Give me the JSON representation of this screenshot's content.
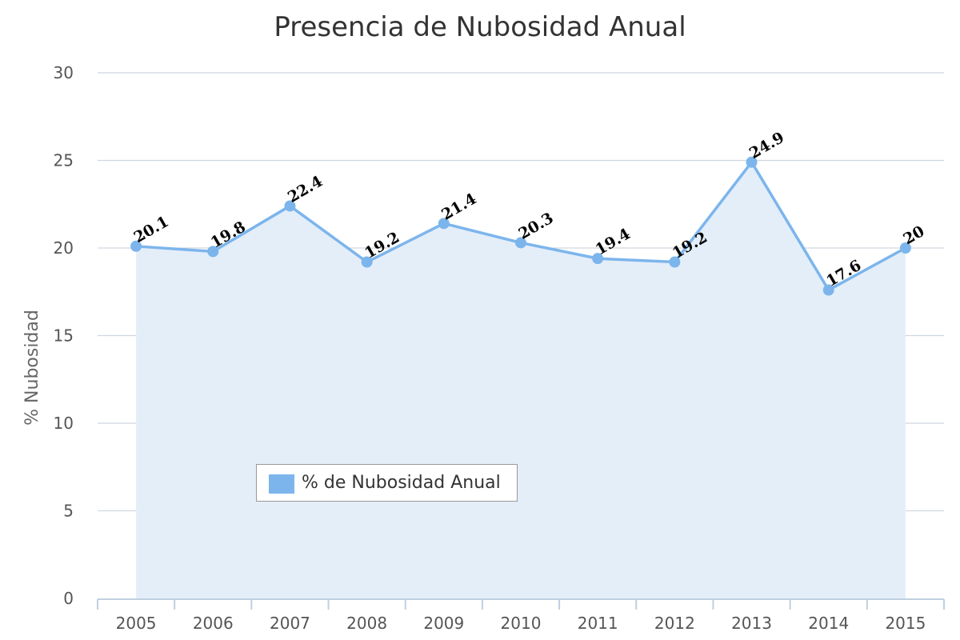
{
  "chart_data": {
    "type": "area",
    "title": "Presencia de Nubosidad Anual",
    "xlabel": "",
    "ylabel": "% Nubosidad",
    "categories": [
      "2005",
      "2006",
      "2007",
      "2008",
      "2009",
      "2010",
      "2011",
      "2012",
      "2013",
      "2014",
      "2015"
    ],
    "series": [
      {
        "name": "% de Nubosidad Anual",
        "values": [
          20.1,
          19.8,
          22.4,
          19.2,
          21.4,
          20.3,
          19.4,
          19.2,
          24.9,
          17.6,
          20
        ],
        "data_labels": [
          "20.1",
          "19.8",
          "22.4",
          "19.2",
          "21.4",
          "20.3",
          "19.4",
          "19.2",
          "24.9",
          "17.6",
          "20"
        ]
      }
    ],
    "ylim": [
      0,
      30
    ],
    "yticks": [
      0,
      5,
      10,
      15,
      20,
      25,
      30
    ],
    "grid": true,
    "legend_position": "inside-bottom-left",
    "colors": {
      "line": "#7cb5ec",
      "area": "#e4eef9",
      "grid": "#d0d7df",
      "axis": "#c0d0e0"
    }
  }
}
